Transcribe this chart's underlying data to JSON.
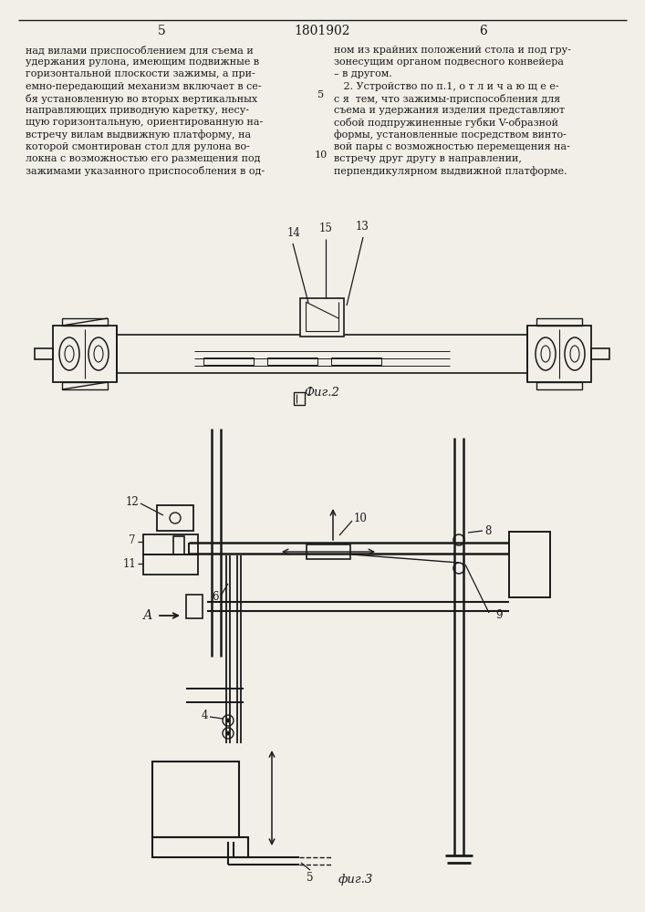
{
  "bg_color": "#f2efe9",
  "text_color": "#1a1a1a",
  "line_color": "#1a1a1a",
  "left_text": [
    "над вилами приспособлением для съема и",
    "удержания рулона, имеющим подвижные в",
    "горизонтальной плоскости зажимы, а при-",
    "емно-передающий механизм включает в се-",
    "бя установленную во вторых вертикальных",
    "направляющих приводную каретку, несу-",
    "щую горизонтальную, ориентированную на-",
    "встречу вилам выдвижную платформу, на",
    "которой смонтирован стол для рулона во-",
    "локна с возможностью его размещения под",
    "зажимами указанного приспособления в од-"
  ],
  "right_text": [
    "ном из крайних положений стола и под гру-",
    "зонесущим органом подвесного конвейера",
    "– в другом.",
    "   2. Устройство по п.1, о т л и ч а ю щ е е-",
    "с я  тем, что зажимы-приспособления для",
    "съема и удержания изделия представляют",
    "собой подпружиненные губки V-образной",
    "формы, установленные посредством винто-",
    "вой пары с возможностью перемещения на-",
    "встречу друг другу в направлении,",
    "перпендикулярном выдвижной платформе."
  ],
  "fig2_label": "Фиг.2",
  "fig3_label": "фиг.3",
  "arrow_A_label": "А"
}
